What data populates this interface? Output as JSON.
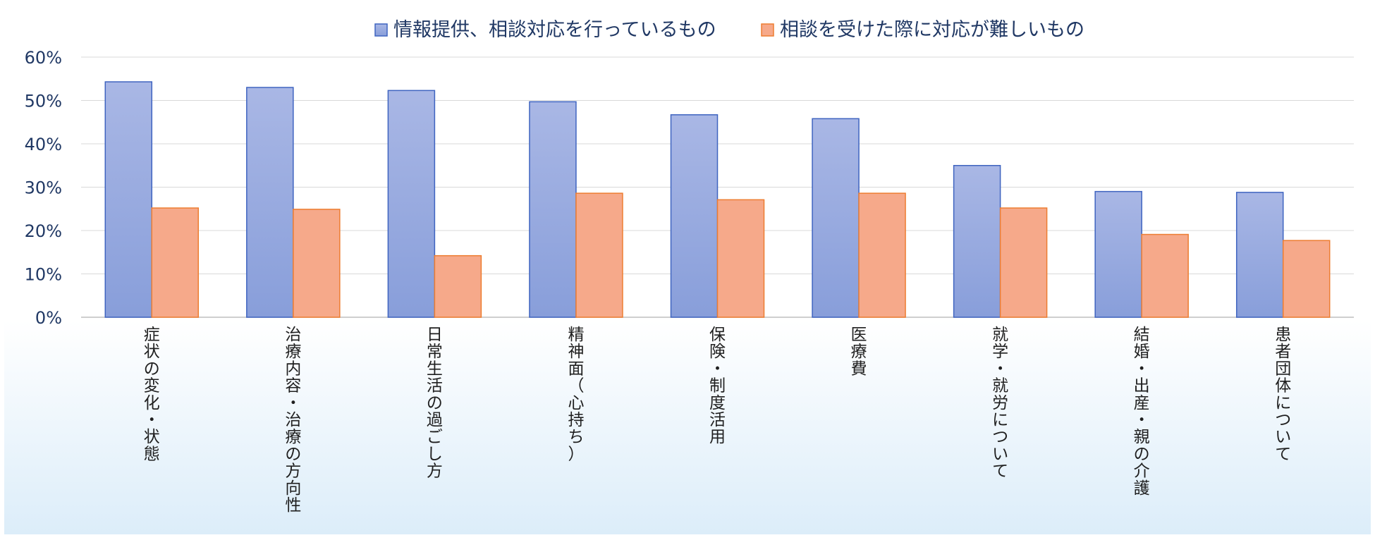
{
  "chart_data": {
    "type": "bar",
    "title": "",
    "xlabel": "",
    "ylabel": "",
    "ylim": [
      0,
      60
    ],
    "yticks": [
      0,
      10,
      20,
      30,
      40,
      50,
      60
    ],
    "ytick_labels": [
      "0%",
      "10%",
      "20%",
      "30%",
      "40%",
      "50%",
      "60%"
    ],
    "grid": true,
    "legend_position": "top-center",
    "categories": [
      "症状の変化・状態",
      "治療内容・治療の方向性",
      "日常生活の過ごし方",
      "精神面（心持ち）",
      "保険・制度活用",
      "医療費",
      "就学・就労について",
      "結婚・出産・親の介護",
      "患者団体について"
    ],
    "series": [
      {
        "name": "情報提供、相談対応を行っているもの",
        "color": "#8EA2DB",
        "border": "#3F64C0",
        "values": [
          54.3,
          53.0,
          52.3,
          49.7,
          46.7,
          45.8,
          35.0,
          29.0,
          28.8
        ]
      },
      {
        "name": "相談を受けた際に対応が難しいもの",
        "color": "#F6A98A",
        "border": "#ED7D31",
        "values": [
          25.2,
          24.9,
          14.2,
          28.6,
          27.1,
          28.6,
          25.2,
          19.1,
          17.7
        ]
      }
    ]
  }
}
